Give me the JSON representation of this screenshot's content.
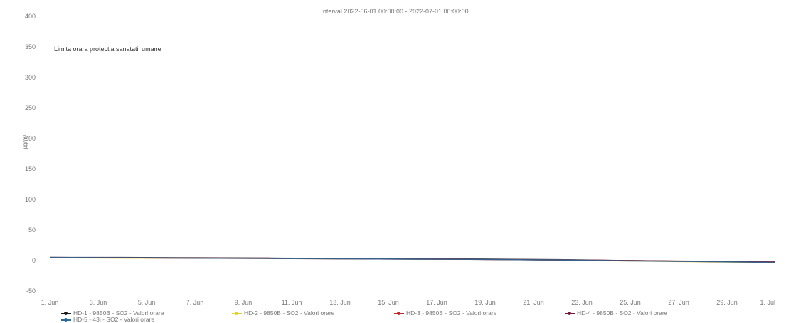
{
  "chart_data": {
    "type": "line",
    "title": "Interval 2022-06-01 00:00:00 - 2022-07-01 00:00:00",
    "annotation": "Limita orara protectia sanatatii umane",
    "ylabel": "µg/m³",
    "ylim": [
      -50,
      400
    ],
    "yticks": [
      -50,
      0,
      50,
      100,
      150,
      200,
      250,
      300,
      350,
      400
    ],
    "xlim": [
      "2022-06-01",
      "2022-07-01"
    ],
    "xtick_labels": [
      "1. Jun",
      "3. Jun",
      "5. Jun",
      "7. Jun",
      "9. Jun",
      "11. Jun",
      "13. Jun",
      "15. Jun",
      "17. Jun",
      "19. Jun",
      "21. Jun",
      "23. Jun",
      "25. Jun",
      "27. Jun",
      "29. Jun",
      "1. Jul"
    ],
    "grid": false,
    "legend_position": "bottom",
    "series": [
      {
        "name": "HD-1 - 9850B - SO2 - Valori orare",
        "color": "#1a1a1a",
        "x": [
          "2022-06-01",
          "2022-06-04",
          "2022-06-07",
          "2022-06-10",
          "2022-06-13",
          "2022-06-16",
          "2022-06-19",
          "2022-06-22",
          "2022-06-25",
          "2022-06-28",
          "2022-07-01"
        ],
        "values": [
          5,
          5,
          4.5,
          4,
          3.5,
          3,
          2.5,
          1.5,
          0,
          -1.5,
          -2.5
        ]
      },
      {
        "name": "HD-2 - 9850B - SO2 - Valori orare",
        "color": "#e8d21f",
        "x": [
          "2022-06-01",
          "2022-06-04",
          "2022-06-07",
          "2022-06-10",
          "2022-06-13",
          "2022-06-16",
          "2022-06-19",
          "2022-06-22",
          "2022-06-25",
          "2022-06-28",
          "2022-07-01"
        ],
        "values": [
          4.5,
          4,
          4,
          3.5,
          3,
          2.5,
          2,
          1,
          -0.5,
          -2,
          -3
        ]
      },
      {
        "name": "HD-3 - 9850B - SO2 - Valori orare",
        "color": "#c0282d",
        "x": [
          "2022-06-01",
          "2022-06-04",
          "2022-06-07",
          "2022-06-10",
          "2022-06-13",
          "2022-06-16",
          "2022-06-19",
          "2022-06-22",
          "2022-06-25",
          "2022-06-28",
          "2022-07-01"
        ],
        "values": [
          5,
          4.5,
          4,
          3.5,
          3,
          3,
          2,
          1,
          0,
          -1.5,
          -2.5
        ]
      },
      {
        "name": "HD-4 - 9850B - SO2 - Valori orare",
        "color": "#7a1a3a",
        "x": [
          "2022-06-01",
          "2022-06-04",
          "2022-06-07",
          "2022-06-10",
          "2022-06-13",
          "2022-06-16",
          "2022-06-19",
          "2022-06-22",
          "2022-06-25",
          "2022-06-28",
          "2022-07-01"
        ],
        "values": [
          5,
          4.5,
          4,
          4,
          3,
          2.5,
          2,
          1,
          0,
          -1,
          -2.5
        ]
      },
      {
        "name": "HD-5 - 43i - SO2 - Valori orare",
        "color": "#2a6a9a",
        "x": [
          "2022-06-01",
          "2022-06-04",
          "2022-06-07",
          "2022-06-10",
          "2022-06-13",
          "2022-06-16",
          "2022-06-19",
          "2022-06-22",
          "2022-06-25",
          "2022-06-28",
          "2022-07-01"
        ],
        "values": [
          5,
          4.5,
          4,
          3.5,
          3,
          2.5,
          2,
          1,
          -0.5,
          -1.5,
          -3
        ]
      }
    ]
  }
}
